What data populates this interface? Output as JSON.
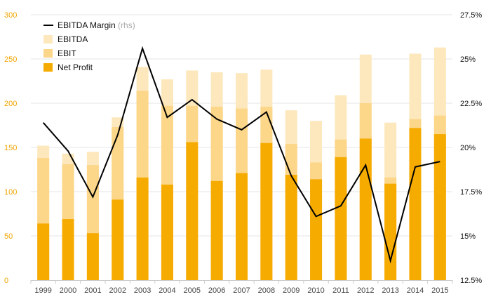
{
  "chart_data": {
    "type": "bar",
    "stacked_overlay": true,
    "categories": [
      "1999",
      "2000",
      "2001",
      "2002",
      "2003",
      "2004",
      "2005",
      "2006",
      "2007",
      "2008",
      "2009",
      "2010",
      "2011",
      "2012",
      "2013",
      "2014",
      "2015"
    ],
    "series": [
      {
        "name": "EBITDA",
        "type": "bar",
        "axis": "left",
        "color": "#fde8bd",
        "values": [
          152,
          143,
          145,
          184,
          241,
          227,
          237,
          235,
          234,
          238,
          192,
          180,
          209,
          255,
          178,
          256,
          263
        ]
      },
      {
        "name": "EBIT",
        "type": "bar",
        "axis": "left",
        "color": "#fcd689",
        "values": [
          138,
          131,
          130,
          173,
          214,
          197,
          197,
          196,
          194,
          196,
          154,
          133,
          159,
          200,
          116,
          182,
          186
        ]
      },
      {
        "name": "Net Profit",
        "type": "bar",
        "axis": "left",
        "color": "#f6ab01",
        "values": [
          64,
          69,
          53,
          91,
          116,
          108,
          156,
          112,
          121,
          155,
          119,
          114,
          139,
          160,
          109,
          172,
          165
        ]
      },
      {
        "name": "EBITDA Margin",
        "name_note": "(rhs)",
        "type": "line",
        "axis": "right",
        "color": "#000000",
        "values": [
          21.4,
          19.8,
          17.2,
          20.7,
          25.6,
          21.7,
          22.7,
          21.6,
          21.0,
          22.0,
          18.4,
          16.1,
          16.7,
          19.0,
          13.6,
          18.9,
          19.2
        ]
      }
    ],
    "y_left": {
      "range": [
        0,
        300
      ],
      "ticks": [
        "0",
        "50",
        "100",
        "150",
        "200",
        "250",
        "300"
      ],
      "tick_color": "#f0a500"
    },
    "y_right": {
      "range": [
        12.5,
        27.5
      ],
      "ticks": [
        "12.5%",
        "15%",
        "17.5%",
        "20%",
        "22.5%",
        "25%",
        "27.5%"
      ],
      "tick_color": "#111111"
    },
    "grid": true,
    "legend_position": "top-left",
    "title": "",
    "xlabel": "",
    "ylabel": ""
  }
}
